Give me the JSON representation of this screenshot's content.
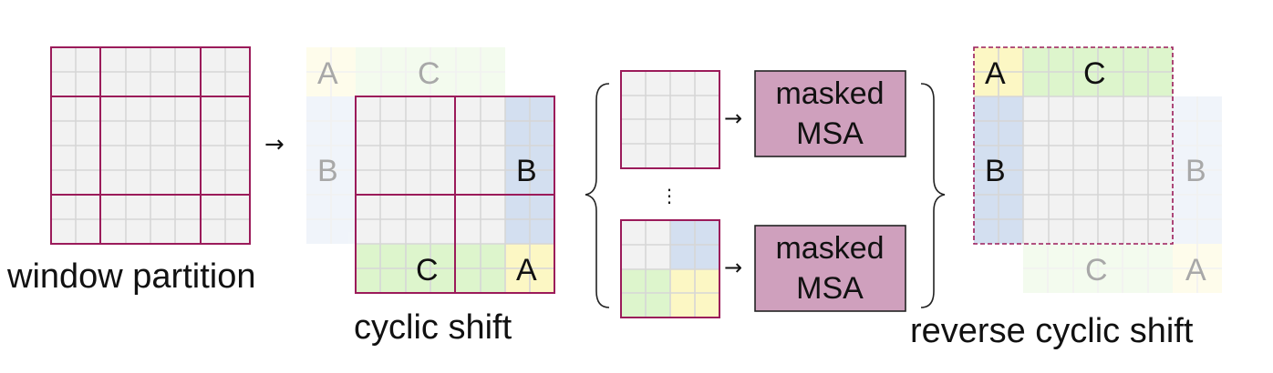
{
  "captions": {
    "window_partition": "window partition",
    "cyclic_shift": "cyclic shift",
    "reverse_cyclic_shift": "reverse cyclic shift"
  },
  "labels": {
    "a": "A",
    "b": "B",
    "c": "C"
  },
  "msa": {
    "line1": "masked",
    "line2": "MSA"
  },
  "arrow": "→",
  "ellipsis": "⋮",
  "colors": {
    "cell": "#f2f2f2",
    "grid": "#d6d6d6",
    "window_border": "#9b1b5a",
    "region_a": "#fcf7c4",
    "region_b": "#d3dff0",
    "region_c": "#ddf5cc",
    "msa_box": "#cfa0bd"
  }
}
